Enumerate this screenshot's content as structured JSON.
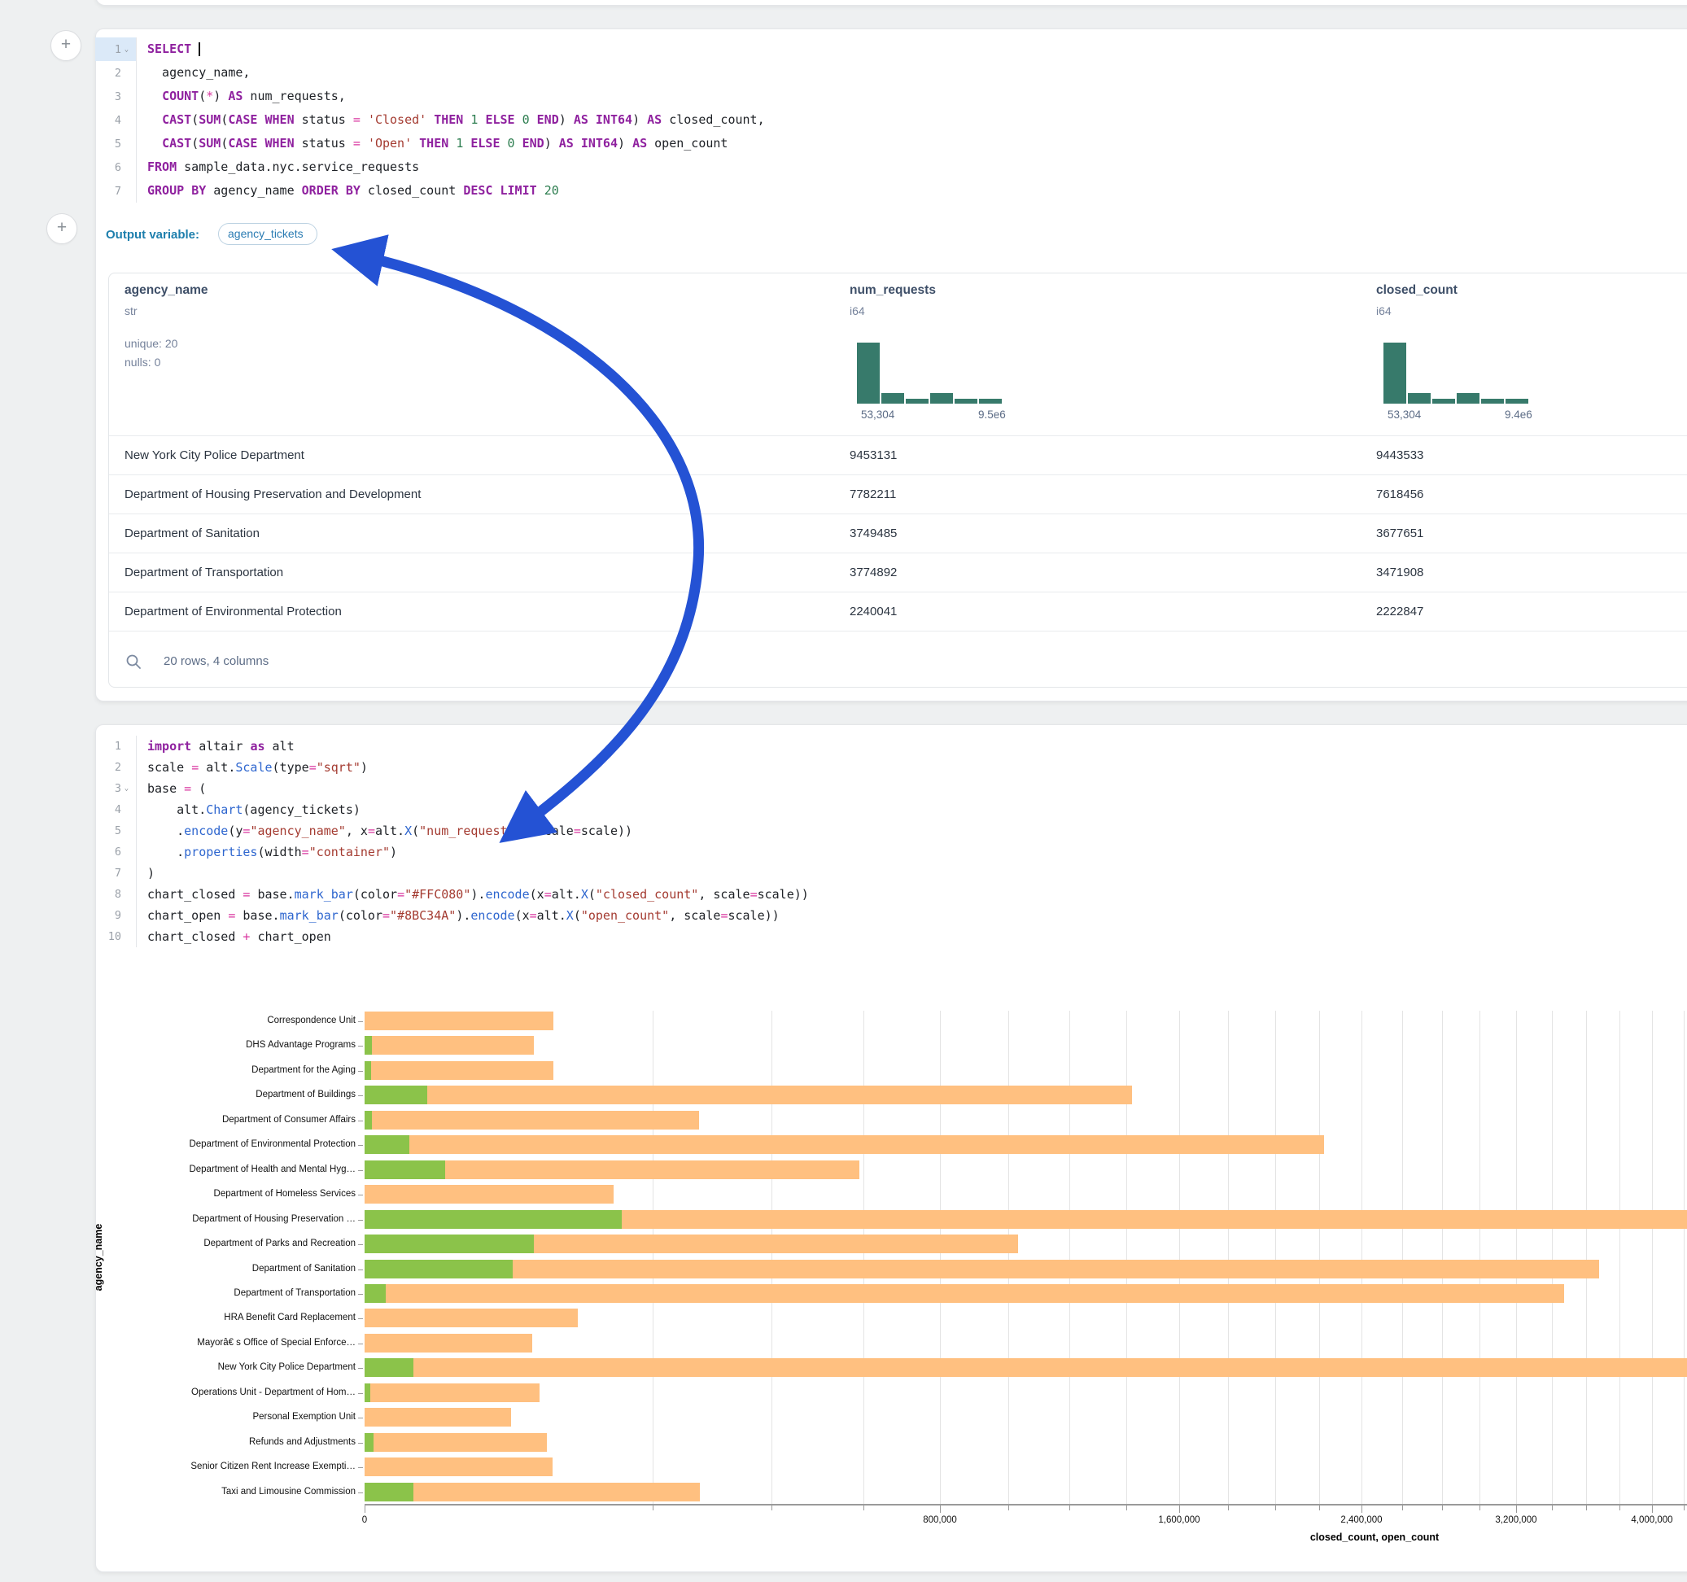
{
  "colors": {
    "arrow": "#2452d4",
    "histogram": "#377a6b",
    "closed_bar": "#FFC080",
    "open_bar": "#8BC34A",
    "keyword": "#8f219f",
    "accent_label": "#1e7fad"
  },
  "sql_cell": {
    "add_cell_button": "+",
    "output_variable_label": "Output variable:",
    "output_variable": "agency_tickets",
    "lines": [
      {
        "n": "1",
        "chevron": true,
        "hl": true,
        "tokens": [
          [
            "kw",
            "SELECT"
          ],
          [
            "pl",
            " "
          ],
          [
            "cursor",
            ""
          ]
        ]
      },
      {
        "n": "2",
        "tokens": [
          [
            "pl",
            "  agency_name,"
          ]
        ]
      },
      {
        "n": "3",
        "tokens": [
          [
            "pl",
            "  "
          ],
          [
            "kw",
            "COUNT"
          ],
          [
            "pl",
            "("
          ],
          [
            "op",
            "*"
          ],
          [
            "pl",
            ") "
          ],
          [
            "kw",
            "AS"
          ],
          [
            "pl",
            " num_requests,"
          ]
        ]
      },
      {
        "n": "4",
        "tokens": [
          [
            "pl",
            "  "
          ],
          [
            "kw",
            "CAST"
          ],
          [
            "pl",
            "("
          ],
          [
            "kw",
            "SUM"
          ],
          [
            "pl",
            "("
          ],
          [
            "kw",
            "CASE"
          ],
          [
            "pl",
            " "
          ],
          [
            "kw",
            "WHEN"
          ],
          [
            "pl",
            " status "
          ],
          [
            "op",
            "="
          ],
          [
            "pl",
            " "
          ],
          [
            "str",
            "'Closed'"
          ],
          [
            "pl",
            " "
          ],
          [
            "kw",
            "THEN"
          ],
          [
            "pl",
            " "
          ],
          [
            "num",
            "1"
          ],
          [
            "pl",
            " "
          ],
          [
            "kw",
            "ELSE"
          ],
          [
            "pl",
            " "
          ],
          [
            "num",
            "0"
          ],
          [
            "pl",
            " "
          ],
          [
            "kw",
            "END"
          ],
          [
            "pl",
            ") "
          ],
          [
            "kw",
            "AS"
          ],
          [
            "pl",
            " "
          ],
          [
            "kw",
            "INT64"
          ],
          [
            "pl",
            ") "
          ],
          [
            "kw",
            "AS"
          ],
          [
            "pl",
            " closed_count,"
          ]
        ]
      },
      {
        "n": "5",
        "tokens": [
          [
            "pl",
            "  "
          ],
          [
            "kw",
            "CAST"
          ],
          [
            "pl",
            "("
          ],
          [
            "kw",
            "SUM"
          ],
          [
            "pl",
            "("
          ],
          [
            "kw",
            "CASE"
          ],
          [
            "pl",
            " "
          ],
          [
            "kw",
            "WHEN"
          ],
          [
            "pl",
            " status "
          ],
          [
            "op",
            "="
          ],
          [
            "pl",
            " "
          ],
          [
            "str",
            "'Open'"
          ],
          [
            "pl",
            " "
          ],
          [
            "kw",
            "THEN"
          ],
          [
            "pl",
            " "
          ],
          [
            "num",
            "1"
          ],
          [
            "pl",
            " "
          ],
          [
            "kw",
            "ELSE"
          ],
          [
            "pl",
            " "
          ],
          [
            "num",
            "0"
          ],
          [
            "pl",
            " "
          ],
          [
            "kw",
            "END"
          ],
          [
            "pl",
            ") "
          ],
          [
            "kw",
            "AS"
          ],
          [
            "pl",
            " "
          ],
          [
            "kw",
            "INT64"
          ],
          [
            "pl",
            ") "
          ],
          [
            "kw",
            "AS"
          ],
          [
            "pl",
            " open_count"
          ]
        ]
      },
      {
        "n": "6",
        "tokens": [
          [
            "kw",
            "FROM"
          ],
          [
            "pl",
            " sample_data.nyc.service_requests"
          ]
        ]
      },
      {
        "n": "7",
        "tokens": [
          [
            "kw",
            "GROUP"
          ],
          [
            "pl",
            " "
          ],
          [
            "kw",
            "BY"
          ],
          [
            "pl",
            " agency_name "
          ],
          [
            "kw",
            "ORDER"
          ],
          [
            "pl",
            " "
          ],
          [
            "kw",
            "BY"
          ],
          [
            "pl",
            " closed_count "
          ],
          [
            "kw",
            "DESC"
          ],
          [
            "pl",
            " "
          ],
          [
            "kw",
            "LIMIT"
          ],
          [
            "pl",
            " "
          ],
          [
            "num",
            "20"
          ]
        ]
      }
    ]
  },
  "table": {
    "columns": [
      {
        "name": "agency_name",
        "type": "str",
        "stats": [
          "unique: 20",
          "nulls: 0"
        ]
      },
      {
        "name": "num_requests",
        "type": "i64",
        "hist": {
          "min_label": "53,304",
          "max_label": "9.5e6",
          "bars": [
            1,
            0.17,
            0.08,
            0.17,
            0.08,
            0.08
          ]
        }
      },
      {
        "name": "closed_count",
        "type": "i64",
        "hist": {
          "min_label": "53,304",
          "max_label": "9.4e6",
          "bars": [
            1,
            0.17,
            0.08,
            0.17,
            0.08,
            0.08
          ]
        }
      }
    ],
    "rows": [
      [
        "New York City Police Department",
        "9453131",
        "9443533"
      ],
      [
        "Department of Housing Preservation and Development",
        "7782211",
        "7618456"
      ],
      [
        "Department of Sanitation",
        "3749485",
        "3677651"
      ],
      [
        "Department of Transportation",
        "3774892",
        "3471908"
      ],
      [
        "Department of Environmental Protection",
        "2240041",
        "2222847"
      ]
    ],
    "footer": "20 rows, 4 columns"
  },
  "python_cell": {
    "lines": [
      {
        "n": "1",
        "tokens": [
          [
            "kw",
            "import"
          ],
          [
            "pl",
            " altair "
          ],
          [
            "kw",
            "as"
          ],
          [
            "pl",
            " alt"
          ]
        ]
      },
      {
        "n": "2",
        "tokens": [
          [
            "pl",
            "scale "
          ],
          [
            "op",
            "="
          ],
          [
            "pl",
            " alt."
          ],
          [
            "fn",
            "Scale"
          ],
          [
            "pl",
            "(type"
          ],
          [
            "op",
            "="
          ],
          [
            "str",
            "\"sqrt\""
          ],
          [
            "pl",
            ")"
          ]
        ]
      },
      {
        "n": "3",
        "chevron": true,
        "tokens": [
          [
            "pl",
            "base "
          ],
          [
            "op",
            "="
          ],
          [
            "pl",
            " ("
          ]
        ]
      },
      {
        "n": "4",
        "tokens": [
          [
            "pl",
            "    alt."
          ],
          [
            "fn",
            "Chart"
          ],
          [
            "pl",
            "(agency_tickets)"
          ]
        ]
      },
      {
        "n": "5",
        "tokens": [
          [
            "pl",
            "    ."
          ],
          [
            "fn",
            "encode"
          ],
          [
            "pl",
            "(y"
          ],
          [
            "op",
            "="
          ],
          [
            "str",
            "\"agency_name\""
          ],
          [
            "pl",
            ", x"
          ],
          [
            "op",
            "="
          ],
          [
            "pl",
            "alt."
          ],
          [
            "fn",
            "X"
          ],
          [
            "pl",
            "("
          ],
          [
            "str",
            "\"num_requests\""
          ],
          [
            "pl",
            ", scale"
          ],
          [
            "op",
            "="
          ],
          [
            "pl",
            "scale))"
          ]
        ]
      },
      {
        "n": "6",
        "tokens": [
          [
            "pl",
            "    ."
          ],
          [
            "fn",
            "properties"
          ],
          [
            "pl",
            "(width"
          ],
          [
            "op",
            "="
          ],
          [
            "str",
            "\"container\""
          ],
          [
            "pl",
            ")"
          ]
        ]
      },
      {
        "n": "7",
        "tokens": [
          [
            "pl",
            ")"
          ]
        ]
      },
      {
        "n": "8",
        "tokens": [
          [
            "pl",
            "chart_closed "
          ],
          [
            "op",
            "="
          ],
          [
            "pl",
            " base."
          ],
          [
            "fn",
            "mark_bar"
          ],
          [
            "pl",
            "(color"
          ],
          [
            "op",
            "="
          ],
          [
            "str",
            "\"#FFC080\""
          ],
          [
            "pl",
            ")."
          ],
          [
            "fn",
            "encode"
          ],
          [
            "pl",
            "(x"
          ],
          [
            "op",
            "="
          ],
          [
            "pl",
            "alt."
          ],
          [
            "fn",
            "X"
          ],
          [
            "pl",
            "("
          ],
          [
            "str",
            "\"closed_count\""
          ],
          [
            "pl",
            ", scale"
          ],
          [
            "op",
            "="
          ],
          [
            "pl",
            "scale))"
          ]
        ]
      },
      {
        "n": "9",
        "tokens": [
          [
            "pl",
            "chart_open "
          ],
          [
            "op",
            "="
          ],
          [
            "pl",
            " base."
          ],
          [
            "fn",
            "mark_bar"
          ],
          [
            "pl",
            "(color"
          ],
          [
            "op",
            "="
          ],
          [
            "str",
            "\"#8BC34A\""
          ],
          [
            "pl",
            ")."
          ],
          [
            "fn",
            "encode"
          ],
          [
            "pl",
            "(x"
          ],
          [
            "op",
            "="
          ],
          [
            "pl",
            "alt."
          ],
          [
            "fn",
            "X"
          ],
          [
            "pl",
            "("
          ],
          [
            "str",
            "\"open_count\""
          ],
          [
            "pl",
            ", scale"
          ],
          [
            "op",
            "="
          ],
          [
            "pl",
            "scale))"
          ]
        ]
      },
      {
        "n": "10",
        "tokens": [
          [
            "pl",
            "chart_closed "
          ],
          [
            "op",
            "+"
          ],
          [
            "pl",
            " chart_open"
          ]
        ]
      }
    ]
  },
  "chart_data": {
    "type": "bar",
    "orientation": "horizontal",
    "x_scale": "sqrt",
    "xlabel": "closed_count, open_count",
    "ylabel": "agency_name",
    "x_tick_values": [
      0,
      800000,
      1600000,
      2400000,
      3200000,
      4000000
    ],
    "x_tick_labels": [
      "0",
      "800,000",
      "1,600,000",
      "2,400,000",
      "3,200,000",
      "4,000,000"
    ],
    "minor_grid_step": 200000,
    "grid": true,
    "categories": [
      "Correspondence Unit",
      "DHS Advantage Programs",
      "Department for the Aging",
      "Department of Buildings",
      "Department of Consumer Affairs",
      "Department of Environmental Protection",
      "Department of Health and Mental Hyg…",
      "Department of Homeless Services",
      "Department of Housing Preservation …",
      "Department of Parks and Recreation",
      "Department of Sanitation",
      "Department of Transportation",
      "HRA Benefit Card Replacement",
      "Mayorâ€ s Office of Special Enforce…",
      "New York City Police Department",
      "Operations Unit - Department of Hom…",
      "Personal Exemption Unit",
      "Refunds and Adjustments",
      "Senior Citizen Rent Increase Exempti…",
      "Taxi and Limousine Commission"
    ],
    "series": [
      {
        "name": "closed_count",
        "color": "#FFC080",
        "values": [
          86000,
          69000,
          86000,
          1420000,
          270000,
          2222847,
          590000,
          150000,
          7618456,
          1030000,
          3677651,
          3471908,
          110000,
          68000,
          9443533,
          74000,
          52000,
          80000,
          85000,
          271000
        ]
      },
      {
        "name": "open_count",
        "color": "#8BC34A",
        "values": [
          0,
          130,
          100,
          9400,
          120,
          4900,
          15800,
          0,
          160000,
          69000,
          53000,
          1060,
          0,
          0,
          5700,
          70,
          0,
          200,
          0,
          5700
        ]
      }
    ]
  }
}
